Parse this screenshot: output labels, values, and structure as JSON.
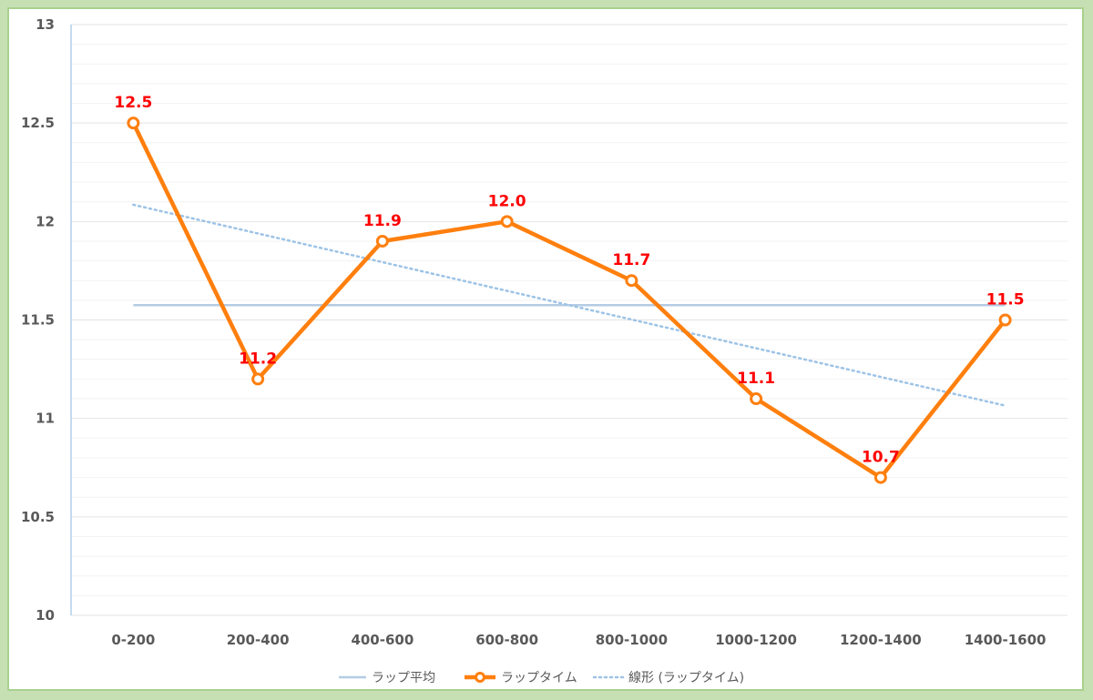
{
  "chart_data": {
    "type": "line",
    "categories": [
      "0-200",
      "200-400",
      "400-600",
      "600-800",
      "800-1000",
      "1000-1200",
      "1200-1400",
      "1400-1600"
    ],
    "series": [
      {
        "name": "ラップタイム",
        "values": [
          12.5,
          11.2,
          11.9,
          12.0,
          11.7,
          11.1,
          10.7,
          11.5
        ],
        "data_labels": [
          "12.5",
          "11.2",
          "11.9",
          "12.0",
          "11.7",
          "11.1",
          "10.7",
          "11.5"
        ],
        "color": "#ff7f0e"
      }
    ],
    "average": {
      "name": "ラップ平均",
      "value": 11.575,
      "color": "#b4cce4"
    },
    "trendline": {
      "name": "線形 (ラップタイム)",
      "start": 12.085,
      "end": 11.065,
      "color": "#9dc3e6"
    },
    "ylim": [
      10,
      13
    ],
    "yticks": [
      "10",
      "10.5",
      "11",
      "11.5",
      "12",
      "12.5",
      "13"
    ],
    "grid": true,
    "legend_position": "bottom",
    "data_label_color": "#ff0000",
    "title": "",
    "xlabel": "",
    "ylabel": ""
  }
}
